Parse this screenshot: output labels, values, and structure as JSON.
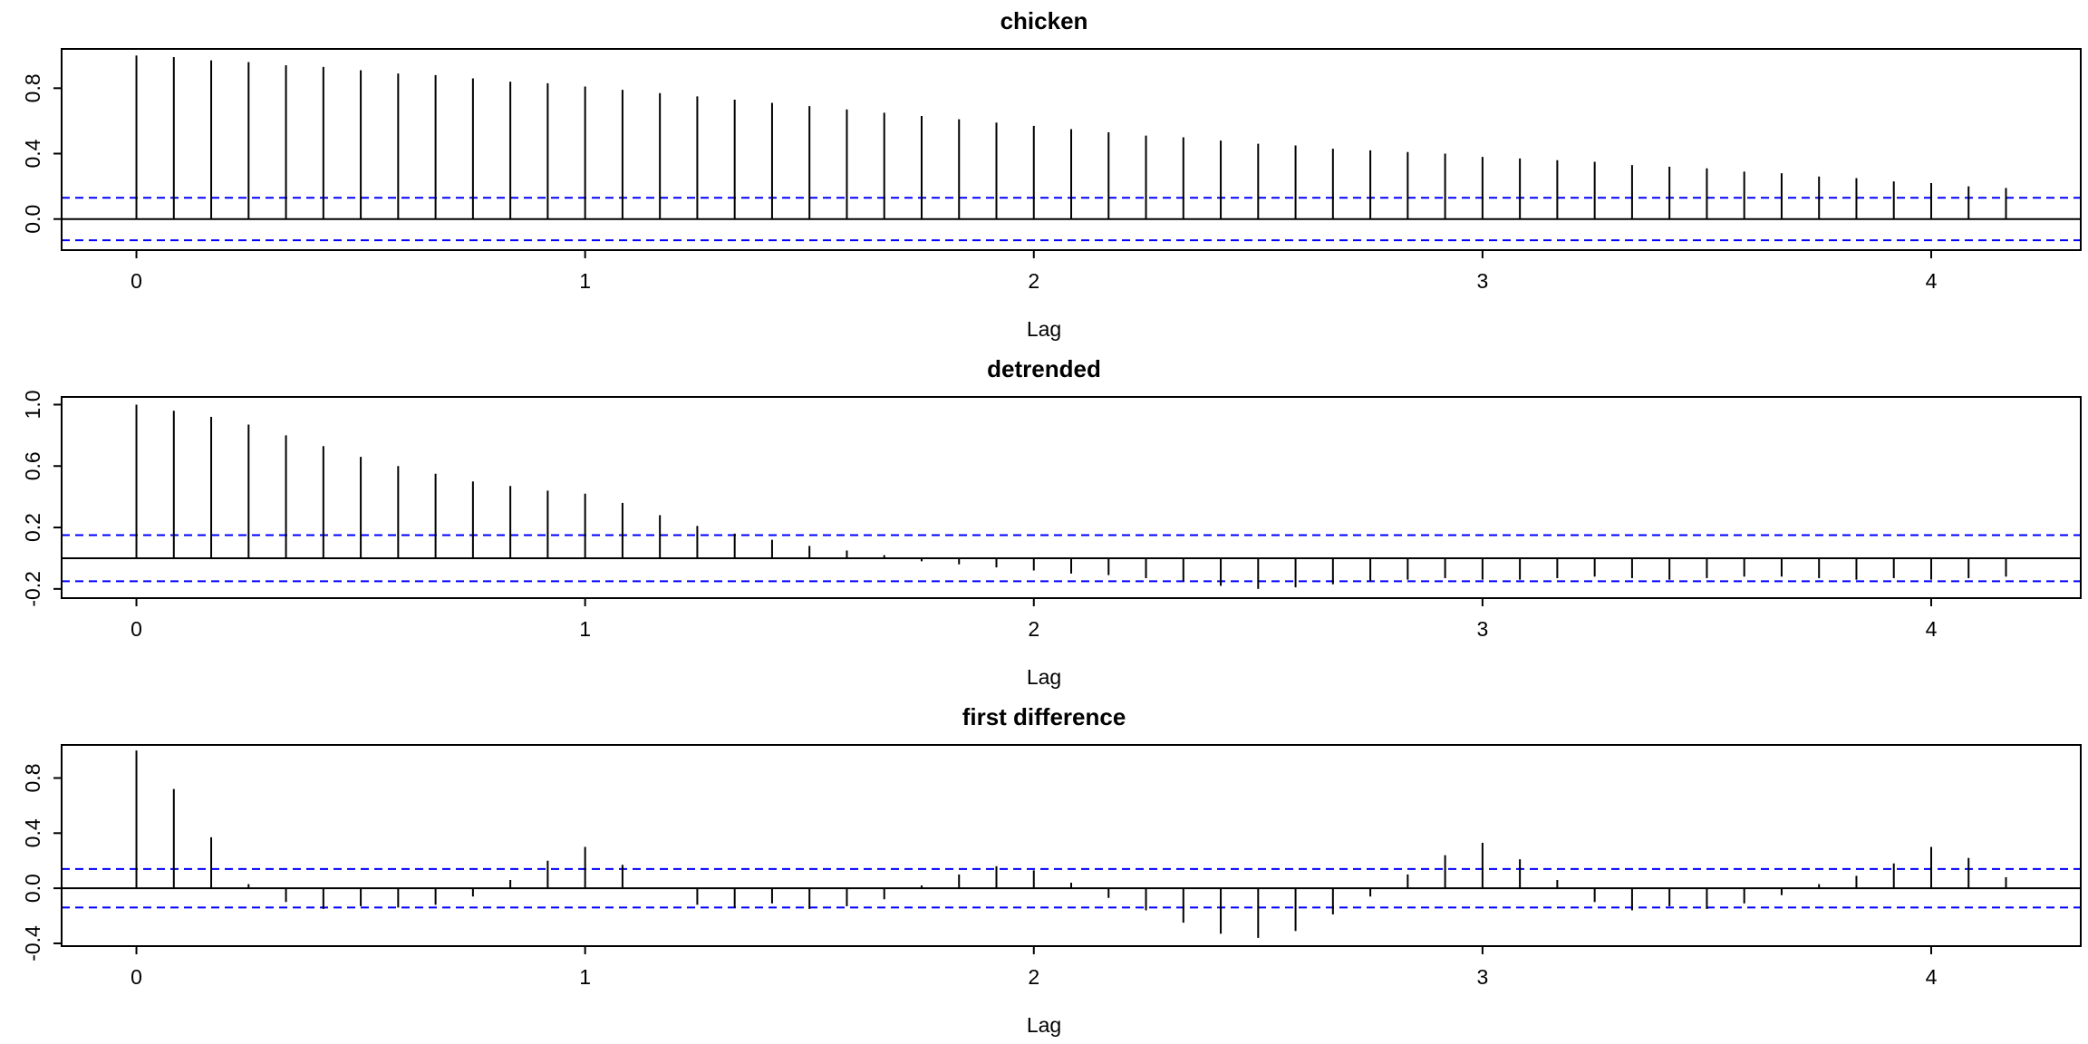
{
  "colors": {
    "spike": "#000000",
    "axis": "#000000",
    "confidence_band": "#0000ff",
    "background": "#ffffff"
  },
  "chart_data": [
    {
      "type": "bar",
      "subtype": "acf-stem-plot",
      "title": "chicken",
      "xlabel": "Lag",
      "ylabel": "",
      "lag_step": 0.0833333,
      "x_domain": [
        -0.1667,
        4.3333
      ],
      "ylim": [
        -0.19,
        1.04
      ],
      "conf": 0.13,
      "x_ticks": [
        0,
        1,
        2,
        3,
        4
      ],
      "x_tick_labels": [
        "0",
        "1",
        "2",
        "3",
        "4"
      ],
      "y_ticks": [
        0.0,
        0.4,
        0.8
      ],
      "y_tick_labels": [
        "0.0",
        "0.4",
        "0.8"
      ],
      "values": [
        1.0,
        0.99,
        0.97,
        0.96,
        0.94,
        0.93,
        0.91,
        0.89,
        0.88,
        0.86,
        0.84,
        0.83,
        0.81,
        0.79,
        0.77,
        0.75,
        0.73,
        0.71,
        0.69,
        0.67,
        0.65,
        0.63,
        0.61,
        0.59,
        0.57,
        0.55,
        0.53,
        0.51,
        0.5,
        0.48,
        0.46,
        0.45,
        0.43,
        0.42,
        0.41,
        0.4,
        0.38,
        0.37,
        0.36,
        0.35,
        0.33,
        0.32,
        0.31,
        0.29,
        0.28,
        0.26,
        0.25,
        0.23,
        0.22,
        0.2,
        0.19
      ]
    },
    {
      "type": "bar",
      "subtype": "acf-stem-plot",
      "title": "detrended",
      "xlabel": "Lag",
      "ylabel": "",
      "lag_step": 0.0833333,
      "x_domain": [
        -0.1667,
        4.3333
      ],
      "ylim": [
        -0.26,
        1.05
      ],
      "conf": 0.15,
      "x_ticks": [
        0,
        1,
        2,
        3,
        4
      ],
      "x_tick_labels": [
        "0",
        "1",
        "2",
        "3",
        "4"
      ],
      "y_ticks": [
        -0.2,
        0.2,
        0.6,
        1.0
      ],
      "y_tick_labels": [
        "-0.2",
        "0.2",
        "0.6",
        "1.0"
      ],
      "values": [
        1.0,
        0.96,
        0.92,
        0.87,
        0.8,
        0.73,
        0.66,
        0.6,
        0.55,
        0.5,
        0.47,
        0.44,
        0.42,
        0.36,
        0.28,
        0.21,
        0.16,
        0.12,
        0.08,
        0.05,
        0.02,
        -0.02,
        -0.04,
        -0.06,
        -0.08,
        -0.1,
        -0.11,
        -0.13,
        -0.15,
        -0.18,
        -0.2,
        -0.19,
        -0.17,
        -0.15,
        -0.14,
        -0.13,
        -0.14,
        -0.14,
        -0.13,
        -0.12,
        -0.13,
        -0.14,
        -0.13,
        -0.12,
        -0.12,
        -0.13,
        -0.14,
        -0.13,
        -0.14,
        -0.13,
        -0.12
      ]
    },
    {
      "type": "bar",
      "subtype": "acf-stem-plot",
      "title": "first difference",
      "xlabel": "Lag",
      "ylabel": "",
      "lag_step": 0.0833333,
      "x_domain": [
        -0.1667,
        4.3333
      ],
      "ylim": [
        -0.42,
        1.04
      ],
      "conf": 0.14,
      "x_ticks": [
        0,
        1,
        2,
        3,
        4
      ],
      "x_tick_labels": [
        "0",
        "1",
        "2",
        "3",
        "4"
      ],
      "y_ticks": [
        -0.4,
        0.0,
        0.4,
        0.8
      ],
      "y_tick_labels": [
        "-0.4",
        "0.0",
        "0.4",
        "0.8"
      ],
      "values": [
        1.0,
        0.72,
        0.37,
        0.03,
        -0.1,
        -0.15,
        -0.13,
        -0.14,
        -0.12,
        -0.06,
        0.06,
        0.2,
        0.3,
        0.17,
        0.0,
        -0.12,
        -0.14,
        -0.11,
        -0.15,
        -0.13,
        -0.08,
        0.02,
        0.1,
        0.16,
        0.13,
        0.04,
        -0.07,
        -0.16,
        -0.25,
        -0.33,
        -0.36,
        -0.31,
        -0.19,
        -0.06,
        0.1,
        0.24,
        0.33,
        0.21,
        0.06,
        -0.1,
        -0.16,
        -0.13,
        -0.15,
        -0.11,
        -0.05,
        0.03,
        0.09,
        0.18,
        0.3,
        0.22,
        0.08
      ]
    }
  ]
}
